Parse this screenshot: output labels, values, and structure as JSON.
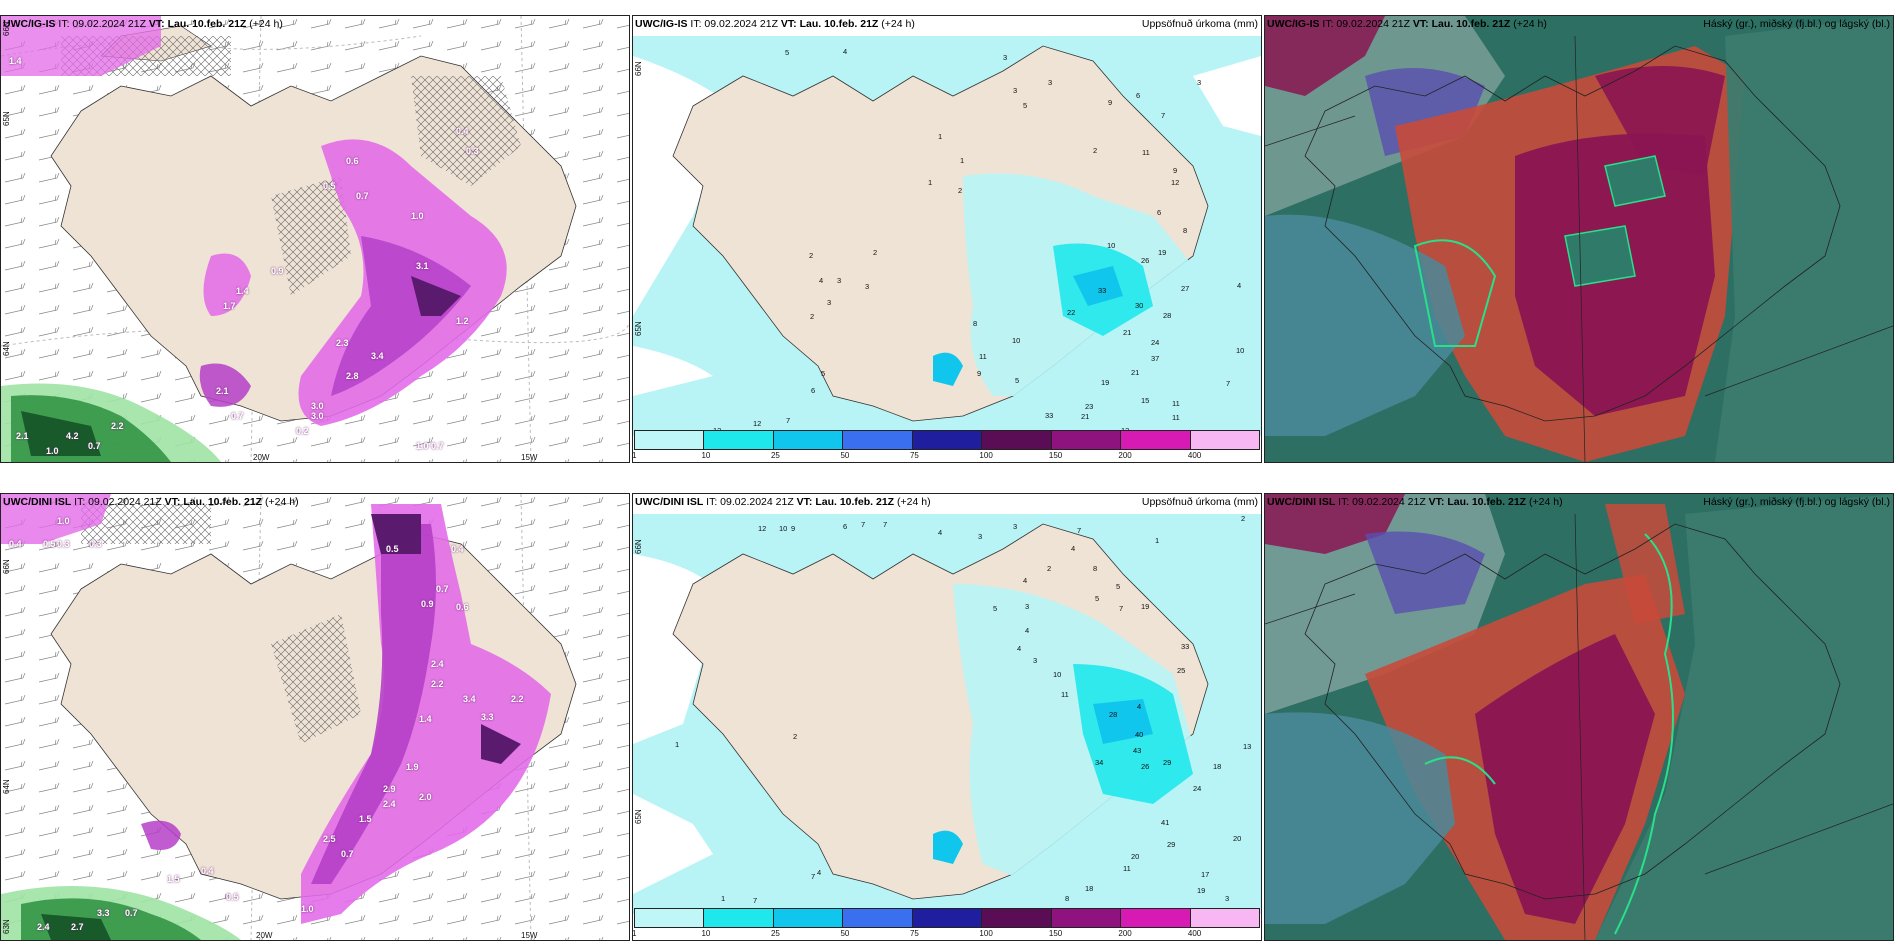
{
  "panels": [
    {
      "id": "p1",
      "header_model": "UWC/IG-IS",
      "header_it": " IT: 09.02.2024 21Z ",
      "header_vt_label": "VT:",
      "header_vt": " Lau. 10.feb. 21Z",
      "header_lead": " (+24 h)",
      "header_right": "",
      "lon_labels": [
        "20W",
        "15W"
      ],
      "lat_labels": [
        "65N",
        "64N",
        "66N"
      ],
      "values": [
        "0.7",
        "0.2",
        "1.0",
        "1.2",
        "2.8",
        "3.0",
        "2.3",
        "3.4",
        "3.1",
        "0.6",
        "0.5",
        "0.7",
        "1.0",
        "0.3",
        "0.4",
        "0.9",
        "1.7",
        "1.4",
        "2.1",
        "0.7",
        "4.2",
        "2.1",
        "1.0",
        "3.0",
        "0.7",
        "2.2",
        "1.4"
      ]
    },
    {
      "id": "p2",
      "header_model": "UWC/IG-IS",
      "header_it": " IT: 09.02.2024 21Z ",
      "header_vt_label": "VT:",
      "header_vt": " Lau. 10.feb. 21Z",
      "header_lead": " (+24 h)",
      "header_right": "Uppsöfnuð úrkoma (mm)",
      "lat_labels": [
        "66N",
        "65N"
      ],
      "colorbar_labels": [
        "1",
        "10",
        "25",
        "50",
        "75",
        "100",
        "150",
        "200",
        "400"
      ],
      "values": [
        "5",
        "4",
        "3",
        "3",
        "3",
        "5",
        "6",
        "9",
        "7",
        "3",
        "1",
        "2",
        "1",
        "2",
        "2",
        "11",
        "9",
        "12",
        "6",
        "8",
        "10",
        "26",
        "19",
        "27",
        "4",
        "22",
        "33",
        "30",
        "28",
        "21",
        "24",
        "37",
        "10",
        "21",
        "7",
        "19",
        "15",
        "11",
        "23",
        "11",
        "12",
        "12",
        "21",
        "2",
        "3",
        "3",
        "4",
        "3",
        "2",
        "5",
        "6",
        "11",
        "9",
        "5",
        "10",
        "8",
        "12",
        "7",
        "33",
        "1"
      ]
    },
    {
      "id": "p3",
      "header_model": "UWC/IG-IS",
      "header_it": " IT: 09.02.2024 21Z ",
      "header_vt_label": "VT:",
      "header_vt": " Lau. 10.feb. 21Z",
      "header_lead": " (+24 h)",
      "header_right": "Háský (gr.), miðský (fj.bl.) og lágský (bl.)"
    },
    {
      "id": "p4",
      "header_model": "UWC/DINI ISL",
      "header_it": " IT: 09.02.2024 21Z ",
      "header_vt_label": "VT:",
      "header_vt": " Lau. 10.feb. 21Z",
      "header_lead": " (+24 h)",
      "header_right": "",
      "lon_labels": [
        "20W",
        "15W"
      ],
      "lat_labels": [
        "66N",
        "64N",
        "63N"
      ],
      "values": [
        "1.0",
        "0.4",
        "0.3",
        "0.5",
        "0.3",
        "0.5",
        "0.4",
        "0.9",
        "0.7",
        "0.6",
        "2.4",
        "2.2",
        "3.4",
        "3.3",
        "2.2",
        "1.4",
        "2.9",
        "2.0",
        "1.9",
        "2.4",
        "1.5",
        "2.5",
        "0.7",
        "1.0",
        "0.5",
        "2.4",
        "2.7",
        "3.3",
        "0.7",
        "0.4",
        "1.5"
      ]
    },
    {
      "id": "p5",
      "header_model": "UWC/DINI ISL",
      "header_it": " IT: 09.02.2024 21Z ",
      "header_vt_label": "VT:",
      "header_vt": " Lau. 10.feb. 21Z",
      "header_lead": " (+24 h)",
      "header_right": "Uppsöfnuð úrkoma (mm)",
      "lat_labels": [
        "66N",
        "65N"
      ],
      "colorbar_labels": [
        "1",
        "10",
        "25",
        "50",
        "75",
        "100",
        "150",
        "200",
        "400"
      ],
      "values": [
        "12",
        "10",
        "9",
        "6",
        "7",
        "7",
        "4",
        "3",
        "3",
        "7",
        "1",
        "2",
        "4",
        "2",
        "8",
        "5",
        "5",
        "7",
        "19",
        "4",
        "5",
        "3",
        "4",
        "4",
        "3",
        "10",
        "11",
        "25",
        "33",
        "28",
        "40",
        "43",
        "34",
        "26",
        "29",
        "13",
        "18",
        "24",
        "41",
        "29",
        "20",
        "20",
        "11",
        "18",
        "17",
        "19",
        "8",
        "11",
        "3",
        "4",
        "7",
        "1",
        "1",
        "2",
        "7",
        "4"
      ]
    },
    {
      "id": "p6",
      "header_model": "UWC/DINI ISL",
      "header_it": " IT: 09.02.2024 21Z ",
      "header_vt_label": "VT:",
      "header_vt": " Lau. 10.feb. 21Z",
      "header_lead": " (+24 h)",
      "header_right": "Háský (gr.), miðský (fj.bl.) og lágský (bl.)"
    }
  ],
  "colorbar_colors": [
    "#bff6f8",
    "#1fe8ec",
    "#11c6ec",
    "#3a6ff0",
    "#1e1e9e",
    "#5a0d54",
    "#8e137e",
    "#d81ab4",
    "#f6b7f2"
  ],
  "colors": {
    "land": "#efe3d5",
    "sea_cyan": "#b8f4f6",
    "precip_purple": "#b53fc8",
    "precip_magenta": "#e36ae8",
    "precip_dark": "#5a1b6e",
    "green_low": "#2d8f3f",
    "cloud_high": "#c84a3a",
    "cloud_mid": "#8a1552",
    "cloud_low": "#2e6f63"
  }
}
